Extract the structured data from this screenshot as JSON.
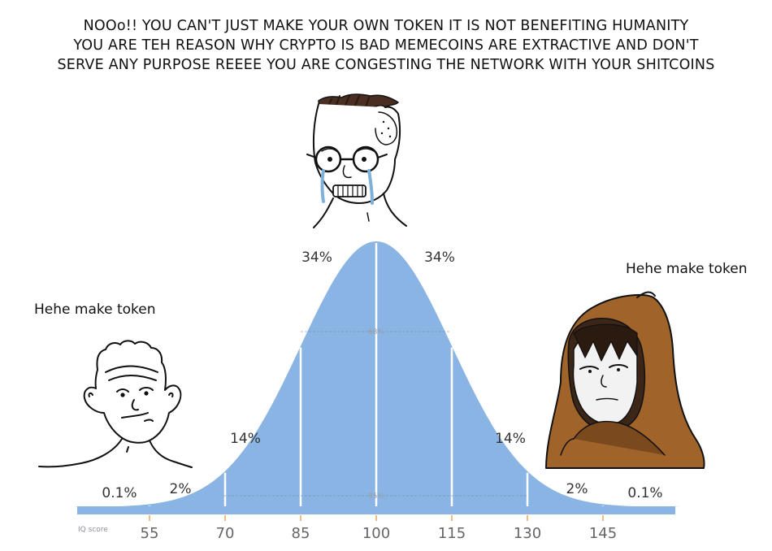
{
  "caption": {
    "line1": "NOOo!! YOU CAN'T JUST MAKE YOUR OWN TOKEN IT IS NOT BENEFITING HUMANITY",
    "line2": "YOU ARE TEH REASON WHY CRYPTO IS BAD MEMECOINS ARE EXTRACTIVE AND DON'T",
    "line3": "SERVE ANY PURPOSE REEEE YOU ARE CONGESTING THE NETWORK WITH YOUR SHITCOINS"
  },
  "left_label": "Hehe make token",
  "right_label": "Hehe make token",
  "characters": {
    "left": "wojak-brainlet",
    "middle": "crying-nerd-wojak",
    "right": "hooded-monk-wojak"
  },
  "bell_curve": {
    "axis_name": "IQ score",
    "ticks": [
      "55",
      "70",
      "85",
      "100",
      "115",
      "130",
      "145"
    ],
    "inner_label": "68%",
    "outer_label": "95%",
    "percentages": {
      "tail_left": "0.1%",
      "band_left_2": "2%",
      "band_left_14": "14%",
      "band_left_34": "34%",
      "band_right_34": "34%",
      "band_right_14": "14%",
      "band_right_2": "2%",
      "tail_right": "0.1%"
    },
    "fill_color": "#8ab4e3",
    "divider_color": "#ffffff",
    "tick_color": "#f0a35e"
  }
}
